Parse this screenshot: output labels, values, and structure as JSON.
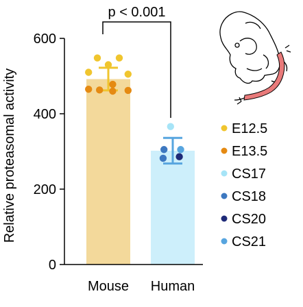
{
  "chart_data": {
    "type": "bar",
    "ylabel": "Relative proteasomal  activity",
    "ylim": [
      0,
      600
    ],
    "yticks": [
      "0",
      "200",
      "400",
      "600"
    ],
    "categories": [
      "Mouse",
      "Human"
    ],
    "bars": [
      {
        "category": "Mouse",
        "value": 492,
        "err_low": 462,
        "err_high": 522,
        "color": "#f3d99b"
      },
      {
        "category": "Human",
        "value": 302,
        "err_low": 268,
        "err_high": 336,
        "color": "#cdeffb"
      }
    ],
    "points": [
      {
        "category": "Mouse",
        "group": "E12.5",
        "value": 548,
        "offset": -0.25
      },
      {
        "category": "Mouse",
        "group": "E12.5",
        "value": 548,
        "offset": 0.25
      },
      {
        "category": "Mouse",
        "group": "E12.5",
        "value": 530,
        "offset": 0.0
      },
      {
        "category": "Mouse",
        "group": "E12.5",
        "value": 510,
        "offset": -0.45
      },
      {
        "category": "Mouse",
        "group": "E12.5",
        "value": 505,
        "offset": 0.45
      },
      {
        "category": "Mouse",
        "group": "E13.5",
        "value": 478,
        "offset": 0.1
      },
      {
        "category": "Mouse",
        "group": "E13.5",
        "value": 465,
        "offset": -0.45
      },
      {
        "category": "Mouse",
        "group": "E13.5",
        "value": 463,
        "offset": -0.2
      },
      {
        "category": "Mouse",
        "group": "E13.5",
        "value": 462,
        "offset": 0.45
      },
      {
        "category": "Mouse",
        "group": "E13.5",
        "value": 460,
        "offset": 0.1
      },
      {
        "category": "Human",
        "group": "CS17",
        "value": 366,
        "offset": -0.05
      },
      {
        "category": "Human",
        "group": "CS18",
        "value": 305,
        "offset": -0.2
      },
      {
        "category": "Human",
        "group": "CS18",
        "value": 282,
        "offset": -0.22
      },
      {
        "category": "Human",
        "group": "CS20",
        "value": 286,
        "offset": 0.15
      },
      {
        "category": "Human",
        "group": "CS21",
        "value": 305,
        "offset": 0.18
      }
    ],
    "legend": [
      {
        "label": "E12.5",
        "color": "#f0c52e"
      },
      {
        "label": "E13.5",
        "color": "#e58a12"
      },
      {
        "label": "CS17",
        "color": "#a6e4f7"
      },
      {
        "label": "CS18",
        "color": "#3d78c0"
      },
      {
        "label": "CS20",
        "color": "#1e2a78"
      },
      {
        "label": "CS21",
        "color": "#57a5df"
      }
    ],
    "legend_position": "right",
    "annotation": {
      "text": "p < 0.001"
    }
  }
}
